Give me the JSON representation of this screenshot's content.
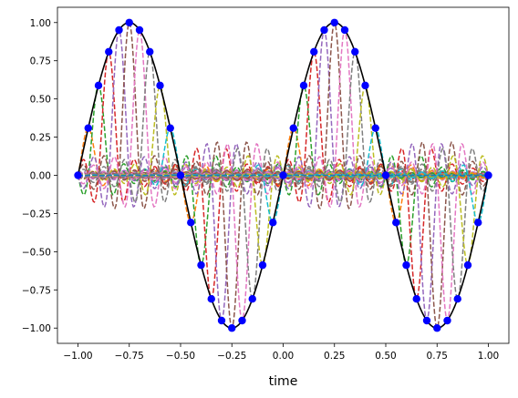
{
  "chart_data": {
    "type": "line",
    "title": "",
    "xlabel": "time",
    "ylabel": "",
    "xlim": [
      -1.1,
      1.1
    ],
    "ylim": [
      -1.1,
      1.1
    ],
    "grid": false,
    "legend": "none",
    "xticks": [
      -1.0,
      -0.75,
      -0.5,
      -0.25,
      0.0,
      0.25,
      0.5,
      0.75,
      1.0
    ],
    "xtick_labels": [
      "−1.00",
      "−0.75",
      "−0.50",
      "−0.25",
      "0.00",
      "0.25",
      "0.50",
      "0.75",
      "1.00"
    ],
    "yticks": [
      -1.0,
      -0.75,
      -0.5,
      -0.25,
      0.0,
      0.25,
      0.5,
      0.75,
      1.0
    ],
    "ytick_labels": [
      "−1.00",
      "−0.75",
      "−0.50",
      "−0.25",
      "0.00",
      "0.25",
      "0.50",
      "0.75",
      "1.00"
    ],
    "series": [
      {
        "style": "solid-line",
        "color": "#000000",
        "x": [
          -1.0,
          -0.95,
          -0.9,
          -0.85,
          -0.8,
          -0.75,
          -0.7,
          -0.65,
          -0.6,
          -0.55,
          -0.5,
          -0.45,
          -0.4,
          -0.35,
          -0.3,
          -0.25,
          -0.2,
          -0.15,
          -0.1,
          -0.05,
          0.0,
          0.05,
          0.1,
          0.15,
          0.2,
          0.25,
          0.3,
          0.35,
          0.4,
          0.45,
          0.5,
          0.55,
          0.6,
          0.65,
          0.7,
          0.75,
          0.8,
          0.85,
          0.9,
          0.95,
          1.0
        ],
        "y": [
          0.0,
          0.309,
          0.588,
          0.809,
          0.951,
          1.0,
          0.951,
          0.809,
          0.588,
          0.309,
          0.0,
          -0.309,
          -0.588,
          -0.809,
          -0.951,
          -1.0,
          -0.951,
          -0.809,
          -0.588,
          -0.309,
          0.0,
          0.309,
          0.588,
          0.809,
          0.951,
          1.0,
          0.951,
          0.809,
          0.588,
          0.309,
          0.0,
          -0.309,
          -0.588,
          -0.809,
          -0.951,
          -1.0,
          -0.951,
          -0.809,
          -0.588,
          -0.309,
          0.0
        ]
      },
      {
        "style": "markers",
        "color": "#0000ff",
        "x": [
          -1.0,
          -0.95,
          -0.9,
          -0.85,
          -0.8,
          -0.75,
          -0.7,
          -0.65,
          -0.6,
          -0.55,
          -0.5,
          -0.45,
          -0.4,
          -0.35,
          -0.3,
          -0.25,
          -0.2,
          -0.15,
          -0.1,
          -0.05,
          0.0,
          0.05,
          0.1,
          0.15,
          0.2,
          0.25,
          0.3,
          0.35,
          0.4,
          0.45,
          0.5,
          0.55,
          0.6,
          0.65,
          0.7,
          0.75,
          0.8,
          0.85,
          0.9,
          0.95,
          1.0
        ],
        "y": [
          0.0,
          0.309,
          0.588,
          0.809,
          0.951,
          1.0,
          0.951,
          0.809,
          0.588,
          0.309,
          0.0,
          -0.309,
          -0.588,
          -0.809,
          -0.951,
          -1.0,
          -0.951,
          -0.809,
          -0.588,
          -0.309,
          0.0,
          0.309,
          0.588,
          0.809,
          0.951,
          1.0,
          0.951,
          0.809,
          0.588,
          0.309,
          0.0,
          -0.309,
          -0.588,
          -0.809,
          -0.951,
          -1.0,
          -0.951,
          -0.809,
          -0.588,
          -0.309,
          0.0
        ]
      }
    ],
    "basis_functions": {
      "style": "dashed-line",
      "shape": "sinc",
      "centers": [
        -1.0,
        -0.95,
        -0.9,
        -0.85,
        -0.8,
        -0.75,
        -0.7,
        -0.65,
        -0.6,
        -0.55,
        -0.5,
        -0.45,
        -0.4,
        -0.35,
        -0.3,
        -0.25,
        -0.2,
        -0.15,
        -0.1,
        -0.05,
        0.0,
        0.05,
        0.1,
        0.15,
        0.2,
        0.25,
        0.3,
        0.35,
        0.4,
        0.45,
        0.5,
        0.55,
        0.6,
        0.65,
        0.7,
        0.75,
        0.8,
        0.85,
        0.9,
        0.95,
        1.0
      ],
      "amplitudes": [
        0.0,
        0.309,
        0.588,
        0.809,
        0.951,
        1.0,
        0.951,
        0.809,
        0.588,
        0.309,
        0.0,
        -0.309,
        -0.588,
        -0.809,
        -0.951,
        -1.0,
        -0.951,
        -0.809,
        -0.588,
        -0.309,
        0.0,
        0.309,
        0.588,
        0.809,
        0.951,
        1.0,
        0.951,
        0.809,
        0.588,
        0.309,
        0.0,
        -0.309,
        -0.588,
        -0.809,
        -0.951,
        -1.0,
        -0.951,
        -0.809,
        -0.588,
        -0.309,
        0.0
      ],
      "spacing": 0.05,
      "colors": [
        "#1f77b4",
        "#ff7f0e",
        "#2ca02c",
        "#d62728",
        "#9467bd",
        "#8c564b",
        "#e377c2",
        "#7f7f7f",
        "#bcbd22",
        "#17becf"
      ]
    }
  }
}
